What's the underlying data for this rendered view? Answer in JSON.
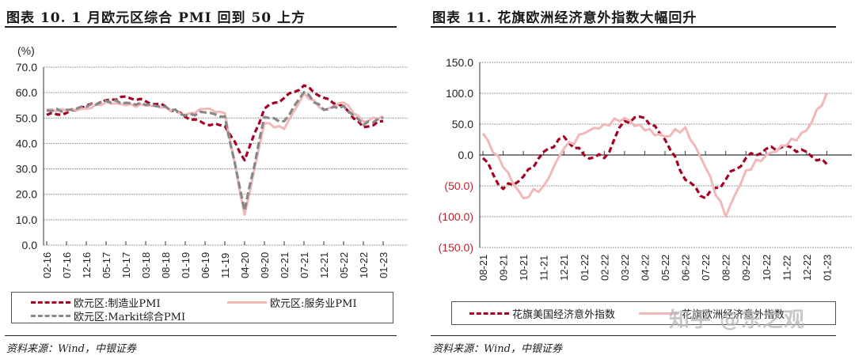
{
  "chart_data": [
    {
      "type": "line",
      "title": "图表 10. 1 月欧元区综合 PMI 回到 50 上方",
      "ylabel": "(%)",
      "xlabel": "",
      "ylim": [
        0,
        70
      ],
      "yticks": [
        "0.0",
        "10.0",
        "20.0",
        "30.0",
        "40.0",
        "50.0",
        "60.0",
        "70.0"
      ],
      "grid": true,
      "legend_position": "bottom",
      "categories": [
        "02-16",
        "07-16",
        "12-16",
        "05-17",
        "10-17",
        "03-18",
        "08-18",
        "01-19",
        "06-19",
        "11-19",
        "04-20",
        "09-20",
        "02-21",
        "07-21",
        "12-21",
        "05-22",
        "10-22",
        "01-23"
      ],
      "series": [
        {
          "name": "欧元区:制造业PMI",
          "color": "#a50021",
          "style": "dashed",
          "values": [
            51.2,
            52.0,
            54.9,
            57.0,
            58.5,
            56.6,
            54.6,
            50.5,
            47.6,
            46.9,
            33.4,
            53.7,
            57.9,
            62.8,
            58.0,
            54.6,
            46.4,
            48.8
          ]
        },
        {
          "name": "欧元区:服务业PMI",
          "color": "#f2b8b8",
          "style": "solid",
          "values": [
            53.3,
            52.9,
            53.7,
            56.3,
            55.0,
            54.9,
            54.4,
            51.2,
            53.6,
            51.9,
            12.0,
            48.0,
            45.7,
            59.8,
            53.1,
            56.1,
            48.6,
            50.8
          ]
        },
        {
          "name": "欧元区:Markit综合PMI",
          "color": "#888888",
          "style": "dashed",
          "values": [
            53.0,
            53.2,
            54.4,
            56.8,
            56.0,
            55.2,
            54.5,
            51.0,
            52.2,
            50.6,
            13.6,
            50.4,
            48.8,
            60.2,
            53.3,
            54.8,
            47.3,
            50.2
          ]
        }
      ]
    },
    {
      "type": "line",
      "title": "图表 11. 花旗欧洲经济意外指数大幅回升",
      "ylabel": "",
      "xlabel": "",
      "ylim": [
        -150,
        150
      ],
      "yticks": [
        "(150.0)",
        "(100.0)",
        "(50.0)",
        "0.0",
        "50.0",
        "100.0",
        "150.0"
      ],
      "grid": true,
      "legend_position": "bottom",
      "categories": [
        "08-21",
        "09-21",
        "10-21",
        "11-21",
        "12-21",
        "01-22",
        "02-22",
        "03-22",
        "04-22",
        "05-22",
        "06-22",
        "07-22",
        "08-22",
        "09-22",
        "10-22",
        "11-22",
        "12-22",
        "01-23"
      ],
      "series": [
        {
          "name": "花旗美国经济意外指数",
          "color": "#a50021",
          "style": "dashed",
          "values": [
            -5,
            -55,
            -35,
            5,
            30,
            0,
            -5,
            55,
            60,
            25,
            -40,
            -70,
            -40,
            -5,
            10,
            15,
            5,
            -15
          ]
        },
        {
          "name": "花旗欧洲经济意外指数",
          "color": "#f2b8b8",
          "style": "solid",
          "values": [
            35,
            -20,
            -70,
            -50,
            10,
            35,
            50,
            60,
            40,
            30,
            45,
            -20,
            -100,
            -25,
            0,
            15,
            40,
            100
          ]
        }
      ]
    }
  ],
  "left": {
    "title": "图表 10. 1 月欧元区综合 PMI 回到 50 上方",
    "unit": "(%)",
    "legend": [
      "欧元区:制造业PMI",
      "欧元区:服务业PMI",
      "欧元区:Markit综合PMI"
    ],
    "source": "资料来源：Wind，中银证券"
  },
  "right": {
    "title": "图表 11. 花旗欧洲经济意外指数大幅回升",
    "legend": [
      "花旗美国经济意外指数",
      "花旗欧洲经济意外指数"
    ],
    "source": "资料来源：Wind，中银证券",
    "watermark": "知乎 @东之观"
  }
}
